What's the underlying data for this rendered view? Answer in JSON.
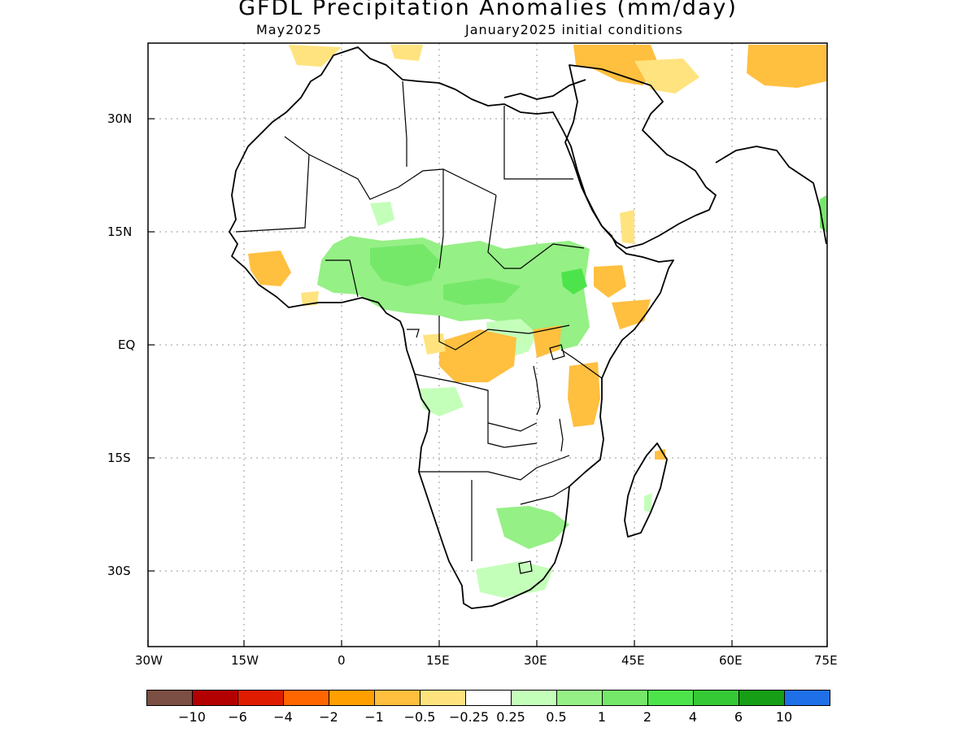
{
  "title": "GFDL Precipitation Anomalies (mm/day)",
  "subtitle_left": "May2025",
  "subtitle_right": "January2025 initial conditions",
  "map": {
    "lon_range": [
      -30,
      75
    ],
    "lat_range": [
      -40,
      40
    ],
    "x_ticks": [
      "30W",
      "15W",
      "0",
      "15E",
      "30E",
      "45E",
      "60E",
      "75E"
    ],
    "y_ticks": [
      "30N",
      "15N",
      "EQ",
      "15S",
      "30S"
    ],
    "grid": "dotted"
  },
  "colorbar": {
    "colors": [
      "#7b4f43",
      "#b30000",
      "#e01c00",
      "#ff6600",
      "#ff9f00",
      "#ffbf3f",
      "#ffe37f",
      "#ffffff",
      "#c4ffba",
      "#95f085",
      "#75e86a",
      "#4de44b",
      "#36c936",
      "#169e16",
      "#1f6fe8"
    ],
    "labels": [
      "−10",
      "−6",
      "−4",
      "−2",
      "−1",
      "−0.5",
      "−0.25",
      "0.25",
      "0.5",
      "1",
      "2",
      "4",
      "6",
      "10"
    ]
  }
}
